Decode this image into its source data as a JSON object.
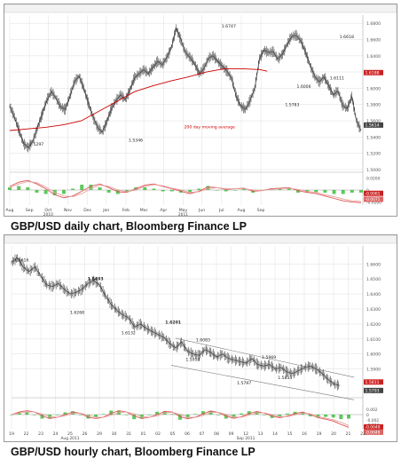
{
  "captions": {
    "daily": "GBP/USD daily chart, Bloomberg Finance LP",
    "hourly": "GBP/USD hourly chart, Bloomberg Finance LP"
  },
  "colors": {
    "price": "#444444",
    "moving_average": "#cc0000",
    "macd_line": "#dd5555",
    "signal_line": "#e8a0a0",
    "histogram": "#33bb33",
    "grid": "#e4e4e4",
    "frame": "#9a9a9a"
  },
  "chart_data": [
    {
      "type": "line",
      "panel": "daily",
      "title": "",
      "ylim": [
        1.5,
        1.69
      ],
      "y_ticks": [
        "1.6800",
        "1.6600",
        "1.6400",
        "1.6200",
        "1.6000",
        "1.5800",
        "1.5600",
        "1.5400",
        "1.5200",
        "1.5000"
      ],
      "y_tick_values": [
        1.68,
        1.66,
        1.64,
        1.62,
        1.6,
        1.58,
        1.56,
        1.54,
        1.52,
        1.5
      ],
      "current_price_labels": [
        "1.6188",
        "1.5614"
      ],
      "current_price_values": [
        1.6188,
        1.5614
      ],
      "x_tick_labels": [
        "Aug",
        "Sep",
        "Oct",
        "Nov",
        "Dec",
        "Jan",
        "Feb",
        "Mar",
        "Apr",
        "May",
        "Jun",
        "Jul",
        "Aug",
        "Sep"
      ],
      "x_tick_index": [
        0,
        22,
        43,
        65,
        87,
        108,
        130,
        150,
        172,
        194,
        215,
        237,
        259,
        281
      ],
      "year_labels": [
        {
          "text": "2010",
          "index": 43
        },
        {
          "text": "2011",
          "index": 194
        }
      ],
      "series": [
        {
          "name": "",
          "values": [
            1.578,
            1.565,
            1.548,
            1.532,
            1.527,
            1.535,
            1.552,
            1.568,
            1.585,
            1.596,
            1.588,
            1.577,
            1.574,
            1.59,
            1.608,
            1.615,
            1.6,
            1.582,
            1.565,
            1.552,
            1.546,
            1.559,
            1.575,
            1.585,
            1.592,
            1.586,
            1.598,
            1.613,
            1.618,
            1.623,
            1.618,
            1.626,
            1.633,
            1.629,
            1.638,
            1.651,
            1.674,
            1.66,
            1.644,
            1.638,
            1.63,
            1.618,
            1.624,
            1.637,
            1.64,
            1.633,
            1.627,
            1.621,
            1.612,
            1.59,
            1.578,
            1.574,
            1.585,
            1.6,
            1.636,
            1.647,
            1.644,
            1.645,
            1.636,
            1.642,
            1.654,
            1.664,
            1.665,
            1.658,
            1.644,
            1.628,
            1.614,
            1.608,
            1.614,
            1.603,
            1.592,
            1.597,
            1.579,
            1.575,
            1.59,
            1.56,
            1.548
          ]
        },
        {
          "name": "200 day moving average",
          "values": [
            1.548,
            1.55,
            1.552,
            1.555,
            1.56,
            1.572,
            1.584,
            1.596,
            1.603,
            1.609,
            1.614,
            1.62,
            1.624,
            1.624,
            1.623,
            1.621
          ]
        }
      ],
      "series_x_index": {
        "price_step": 3.8,
        "ma_index": [
          0,
          20,
          40,
          60,
          80,
          100,
          120,
          140,
          160,
          180,
          200,
          220,
          240,
          260,
          280,
          288
        ]
      },
      "annotations": [
        {
          "text": "1.5297",
          "x_index": 22,
          "value": 1.5297
        },
        {
          "text": "1.5346",
          "x_index": 133,
          "value": 1.5346
        },
        {
          "text": "1.6747",
          "x_index": 237,
          "value": 1.6747
        },
        {
          "text": "1.5783",
          "x_index": 308,
          "value": 1.5783
        },
        {
          "text": "1.6006",
          "x_index": 321,
          "value": 1.6006
        },
        {
          "text": "1.6111",
          "x_index": 358,
          "value": 1.6111
        },
        {
          "text": "1.6618",
          "x_index": 369,
          "value": 1.6618
        },
        {
          "text": "200 day moving average",
          "x_index": 195,
          "value": 1.551
        }
      ],
      "oscillator": {
        "y_ticks": [
          "0.0200",
          "0",
          "-0.0200"
        ],
        "y_tick_values": [
          0.02,
          0,
          -0.02
        ],
        "current_labels": [
          "-0.0061",
          "-0.0071"
        ],
        "current_values": [
          -0.0061,
          -0.0071
        ],
        "macd": [
          0.006,
          0.013,
          0.016,
          0.01,
          0.002,
          -0.008,
          -0.013,
          -0.01,
          -0.002,
          0.006,
          0.01,
          0.004,
          -0.003,
          -0.004,
          0.002,
          0.008,
          0.01,
          0.006,
          0.002,
          -0.002,
          -0.006,
          -0.002,
          0.005,
          0.004,
          0.001,
          0.002,
          0.003,
          -0.002,
          -0.001,
          0.002,
          0.003,
          0.004,
          -0.001,
          -0.004,
          -0.006,
          -0.01,
          -0.014,
          -0.018,
          -0.02,
          -0.021
        ],
        "signal": [
          0.004,
          0.01,
          0.014,
          0.012,
          0.005,
          -0.004,
          -0.01,
          -0.011,
          -0.006,
          0.002,
          0.008,
          0.006,
          0.0,
          -0.003,
          0.0,
          0.006,
          0.009,
          0.007,
          0.003,
          0.0,
          -0.004,
          -0.003,
          0.002,
          0.004,
          0.002,
          0.002,
          0.002,
          0.0,
          -0.001,
          0.001,
          0.002,
          0.003,
          0.001,
          -0.002,
          -0.004,
          -0.008,
          -0.011,
          -0.015,
          -0.018,
          -0.019
        ]
      }
    },
    {
      "type": "line",
      "panel": "hourly",
      "title": "",
      "ylim": [
        1.575,
        1.672
      ],
      "y_ticks": [
        "1.6600",
        "1.6500",
        "1.6400",
        "1.6300",
        "1.6200",
        "1.6100",
        "1.6000",
        "1.5900"
      ],
      "y_tick_values": [
        1.66,
        1.65,
        1.64,
        1.63,
        1.62,
        1.61,
        1.6,
        1.59
      ],
      "current_price_labels": [
        "1.5811",
        "1.5793"
      ],
      "current_price_values": [
        1.5811,
        1.5793
      ],
      "x_tick_labels": [
        "19",
        "22",
        "23",
        "24",
        "25",
        "26",
        "29",
        "30",
        "31",
        "01",
        "02",
        "05",
        "06",
        "07",
        "08",
        "09",
        "12",
        "13",
        "14",
        "15",
        "16",
        "19",
        "20",
        "21",
        "22"
      ],
      "x_group_labels": [
        {
          "text": "Aug 2011",
          "x_index": 4
        },
        {
          "text": "Sep 2011",
          "x_index": 16
        }
      ],
      "series": [
        {
          "name": "",
          "values": [
            1.661,
            1.664,
            1.658,
            1.655,
            1.658,
            1.652,
            1.646,
            1.645,
            1.647,
            1.643,
            1.64,
            1.641,
            1.643,
            1.647,
            1.649,
            1.646,
            1.639,
            1.633,
            1.629,
            1.626,
            1.624,
            1.618,
            1.62,
            1.617,
            1.615,
            1.613,
            1.611,
            1.607,
            1.604,
            1.608,
            1.602,
            1.6,
            1.599,
            1.603,
            1.601,
            1.598,
            1.6,
            1.597,
            1.596,
            1.595,
            1.594,
            1.597,
            1.593,
            1.592,
            1.593,
            1.59,
            1.591,
            1.588,
            1.587,
            1.589,
            1.591,
            1.592,
            1.59,
            1.587,
            1.583,
            1.58,
            1.579
          ]
        }
      ],
      "annotations": [
        {
          "text": "1.6616",
          "x_index": 0.2,
          "value": 1.6616
        },
        {
          "text": "1.6493",
          "x_index": 5.2,
          "value": 1.6493
        },
        {
          "text": "1.6268",
          "x_index": 4.0,
          "value": 1.6268
        },
        {
          "text": "1.6132",
          "x_index": 7.5,
          "value": 1.6132
        },
        {
          "text": "1.6201",
          "x_index": 10.5,
          "value": 1.6201
        },
        {
          "text": "1.6083",
          "x_index": 12.6,
          "value": 1.6083
        },
        {
          "text": "1.5953",
          "x_index": 11.9,
          "value": 1.5953
        },
        {
          "text": "1.5969",
          "x_index": 17.1,
          "value": 1.5969
        },
        {
          "text": "1.5797",
          "x_index": 15.4,
          "value": 1.5797
        },
        {
          "text": "1.5833",
          "x_index": 18.2,
          "value": 1.5833
        }
      ],
      "channel": [
        {
          "from": [
            11.2,
            1.6105
          ],
          "to": [
            23.4,
            1.5845
          ]
        },
        {
          "from": [
            10.9,
            1.5925
          ],
          "to": [
            23.4,
            1.5695
          ]
        }
      ],
      "oscillator": {
        "y_ticks": [
          "0.002",
          "0",
          "-0.002",
          "-0.004"
        ],
        "y_tick_values": [
          0.002,
          0,
          -0.002,
          -0.004
        ],
        "current_labels": [
          "-0.0049",
          "-0.0049"
        ],
        "current_values": [
          -0.0049,
          -0.0049
        ],
        "macd": [
          0.0,
          0.001,
          0.0015,
          0.001,
          -0.0005,
          -0.0015,
          -0.001,
          0.0,
          0.001,
          0.0005,
          -0.001,
          -0.0015,
          -0.001,
          0.0005,
          0.0015,
          0.001,
          -0.0005,
          -0.0015,
          -0.001,
          0.0,
          0.0012,
          0.001,
          -0.0008,
          -0.0016,
          -0.001,
          0.0003,
          0.0014,
          0.0008,
          -0.0006,
          -0.0014,
          -0.0008,
          0.0004,
          0.0012,
          0.0006,
          -0.0006,
          -0.0012,
          -0.0006,
          0.0004,
          0.001,
          0.0,
          -0.0012,
          -0.0018,
          -0.0025,
          -0.0038,
          -0.0049
        ],
        "signal": [
          0.0,
          0.0006,
          0.0011,
          0.001,
          0.0002,
          -0.0008,
          -0.001,
          -0.0004,
          0.0004,
          0.0006,
          -0.0003,
          -0.001,
          -0.0011,
          -0.0002,
          0.0008,
          0.001,
          0.0003,
          -0.0008,
          -0.001,
          -0.0005,
          0.0006,
          0.0009,
          0.0001,
          -0.001,
          -0.0011,
          -0.0003,
          0.0008,
          0.0009,
          0.0001,
          -0.0009,
          -0.001,
          -0.0002,
          0.0007,
          0.0007,
          0.0,
          -0.0008,
          -0.0008,
          -0.0001,
          0.0006,
          0.0003,
          -0.0007,
          -0.0014,
          -0.002,
          -0.003,
          -0.0042
        ]
      }
    }
  ]
}
